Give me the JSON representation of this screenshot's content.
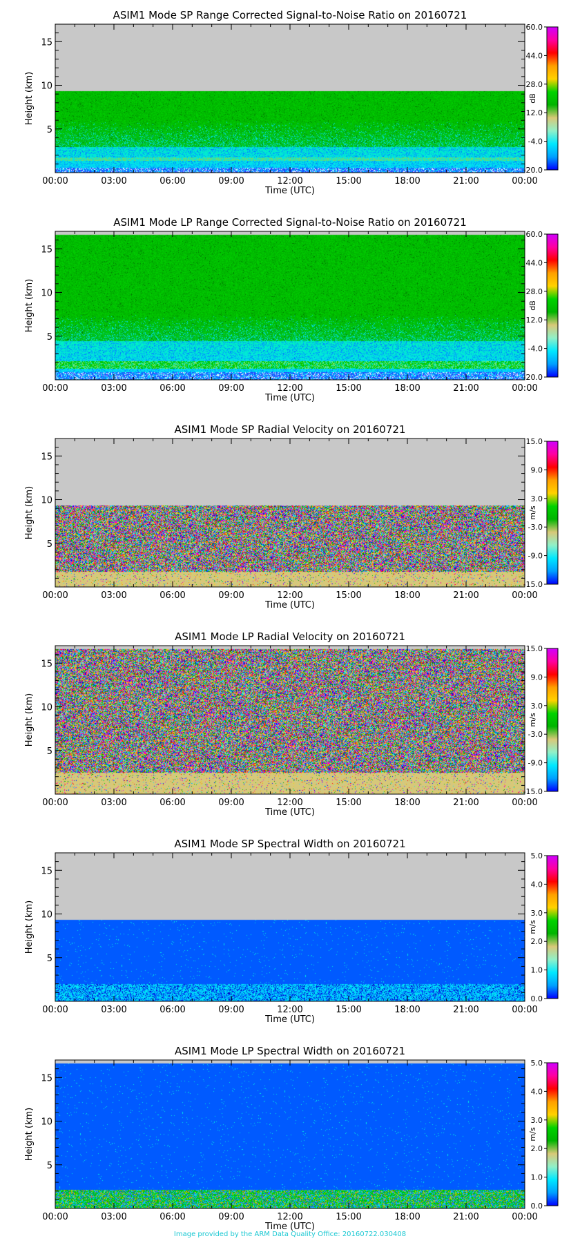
{
  "credit": "Image provided by the ARM Data Quality Office: 20160722.030408",
  "colors": {
    "no_data": "#c8c8c8",
    "rainbow": [
      "#0000ff",
      "#00a0ff",
      "#00e8ff",
      "#90f0c8",
      "#d8c878",
      "#00b400",
      "#00d200",
      "#ffd200",
      "#ffa000",
      "#ff0000",
      "#ff00a0",
      "#d000ff"
    ]
  },
  "chart_data": [
    {
      "type": "heatmap",
      "title": "ASIM1 Mode SP Range Corrected Signal-to-Noise Ratio on 20160721",
      "xlabel": "Time (UTC)",
      "ylabel": "Height (km)",
      "x_ticks": [
        "00:00",
        "03:00",
        "06:00",
        "09:00",
        "12:00",
        "15:00",
        "18:00",
        "21:00",
        "00:00"
      ],
      "y_ticks": [
        5,
        10,
        15
      ],
      "ylim": [
        0,
        17
      ],
      "data_top_km": 9.3,
      "colorbar": {
        "label": "dB",
        "ticks": [
          "60.0",
          "44.0",
          "28.0",
          "12.0",
          "-4.0",
          "-20.0"
        ],
        "range": [
          -20,
          60
        ]
      },
      "pattern": "snr_sp"
    },
    {
      "type": "heatmap",
      "title": "ASIM1 Mode LP Range Corrected Signal-to-Noise Ratio on 20160721",
      "xlabel": "Time (UTC)",
      "ylabel": "Height (km)",
      "x_ticks": [
        "00:00",
        "03:00",
        "06:00",
        "09:00",
        "12:00",
        "15:00",
        "18:00",
        "21:00",
        "00:00"
      ],
      "y_ticks": [
        5,
        10,
        15
      ],
      "ylim": [
        0,
        17
      ],
      "data_top_km": 16.6,
      "colorbar": {
        "label": "dB",
        "ticks": [
          "60.0",
          "44.0",
          "28.0",
          "12.0",
          "-4.0",
          "-20.0"
        ],
        "range": [
          -20,
          60
        ]
      },
      "pattern": "snr_lp"
    },
    {
      "type": "heatmap",
      "title": "ASIM1 Mode SP Radial Velocity  on 20160721",
      "xlabel": "Time (UTC)",
      "ylabel": "Height (km)",
      "x_ticks": [
        "00:00",
        "03:00",
        "06:00",
        "09:00",
        "12:00",
        "15:00",
        "18:00",
        "21:00",
        "00:00"
      ],
      "y_ticks": [
        5,
        10,
        15
      ],
      "ylim": [
        0,
        17
      ],
      "data_top_km": 9.3,
      "colorbar": {
        "label": "m/s",
        "ticks": [
          "15.0",
          "9.0",
          "3.0",
          "-3.0",
          "-9.0",
          "-15.0"
        ],
        "range": [
          -15,
          15
        ]
      },
      "pattern": "vel_sp"
    },
    {
      "type": "heatmap",
      "title": "ASIM1 Mode LP Radial Velocity  on 20160721",
      "xlabel": "Time (UTC)",
      "ylabel": "Height (km)",
      "x_ticks": [
        "00:00",
        "03:00",
        "06:00",
        "09:00",
        "12:00",
        "15:00",
        "18:00",
        "21:00",
        "00:00"
      ],
      "y_ticks": [
        5,
        10,
        15
      ],
      "ylim": [
        0,
        17
      ],
      "data_top_km": 16.6,
      "colorbar": {
        "label": "m/s",
        "ticks": [
          "15.0",
          "9.0",
          "3.0",
          "-3.0",
          "-9.0",
          "-15.0"
        ],
        "range": [
          -15,
          15
        ]
      },
      "pattern": "vel_lp"
    },
    {
      "type": "heatmap",
      "title": "ASIM1 Mode SP Spectral Width  on 20160721",
      "xlabel": "Time (UTC)",
      "ylabel": "Height (km)",
      "x_ticks": [
        "00:00",
        "03:00",
        "06:00",
        "09:00",
        "12:00",
        "15:00",
        "18:00",
        "21:00",
        "00:00"
      ],
      "y_ticks": [
        5,
        10,
        15
      ],
      "ylim": [
        0,
        17
      ],
      "data_top_km": 9.3,
      "colorbar": {
        "label": "m/s",
        "ticks": [
          "5.0",
          "4.0",
          "3.0",
          "2.0",
          "1.0",
          "0.0"
        ],
        "range": [
          0,
          5
        ]
      },
      "pattern": "sw_sp"
    },
    {
      "type": "heatmap",
      "title": "ASIM1 Mode LP Spectral Width  on 20160721",
      "xlabel": "Time (UTC)",
      "ylabel": "Height (km)",
      "x_ticks": [
        "00:00",
        "03:00",
        "06:00",
        "09:00",
        "12:00",
        "15:00",
        "18:00",
        "21:00",
        "00:00"
      ],
      "y_ticks": [
        5,
        10,
        15
      ],
      "ylim": [
        0,
        17
      ],
      "data_top_km": 16.6,
      "colorbar": {
        "label": "m/s",
        "ticks": [
          "5.0",
          "4.0",
          "3.0",
          "2.0",
          "1.0",
          "0.0"
        ],
        "range": [
          0,
          5
        ]
      },
      "pattern": "sw_lp"
    }
  ]
}
